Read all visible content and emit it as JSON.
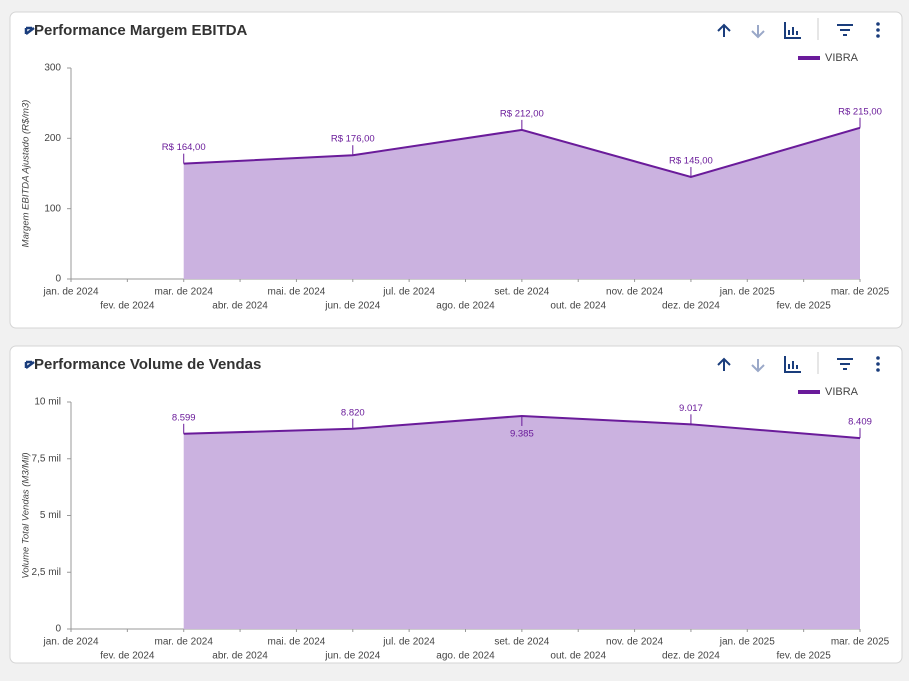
{
  "chart_data": [
    {
      "type": "area",
      "title": "Performance Margem EBITDA",
      "y_label": "Margem EBITDA Ajustado (R$/m3)",
      "xticks": [
        "jan. de 2024",
        "fev. de 2024",
        "mar. de 2024",
        "abr. de 2024",
        "mai. de 2024",
        "jun. de 2024",
        "jul. de 2024",
        "ago. de 2024",
        "set. de 2024",
        "out. de 2024",
        "nov. de 2024",
        "dez. de 2024",
        "jan. de 2025",
        "fev. de 2025",
        "mar. de 2025"
      ],
      "x": [
        "mar. de 2024",
        "jun. de 2024",
        "set. de 2024",
        "dez. de 2024",
        "mar. de 2025"
      ],
      "series": [
        {
          "name": "VIBRA",
          "color": "#6a1b9a",
          "fill": "#cbb2e0",
          "values": [
            164,
            176,
            212,
            145,
            215
          ],
          "value_labels": [
            "R$ 164,00",
            "R$ 176,00",
            "R$ 212,00",
            "R$ 145,00",
            "R$ 215,00"
          ]
        }
      ],
      "ylim": [
        0,
        300
      ],
      "yticks": [
        0,
        100,
        200,
        300
      ]
    },
    {
      "type": "area",
      "title": "Performance Volume de Vendas",
      "y_label": "Volume Total Vendas (M3/Mil)",
      "xticks": [
        "jan. de 2024",
        "fev. de 2024",
        "mar. de 2024",
        "abr. de 2024",
        "mai. de 2024",
        "jun. de 2024",
        "jul. de 2024",
        "ago. de 2024",
        "set. de 2024",
        "out. de 2024",
        "nov. de 2024",
        "dez. de 2024",
        "jan. de 2025",
        "fev. de 2025",
        "mar. de 2025"
      ],
      "x": [
        "mar. de 2024",
        "jun. de 2024",
        "set. de 2024",
        "dez. de 2024",
        "mar. de 2025"
      ],
      "series": [
        {
          "name": "VIBRA",
          "color": "#6a1b9a",
          "fill": "#cbb2e0",
          "values": [
            8599,
            8820,
            9385,
            9017,
            8409
          ],
          "value_labels": [
            "8.599",
            "8.820",
            "9.385",
            "9.017",
            "8.409"
          ]
        }
      ],
      "ylim": [
        0,
        10000
      ],
      "yticks": [
        0,
        {
          "value": 2500,
          "label": "2,5 mil"
        },
        {
          "value": 5000,
          "label": "5 mil"
        },
        {
          "value": 7500,
          "label": "7,5 mil"
        },
        {
          "value": 10000,
          "label": "10 mil"
        }
      ]
    }
  ]
}
